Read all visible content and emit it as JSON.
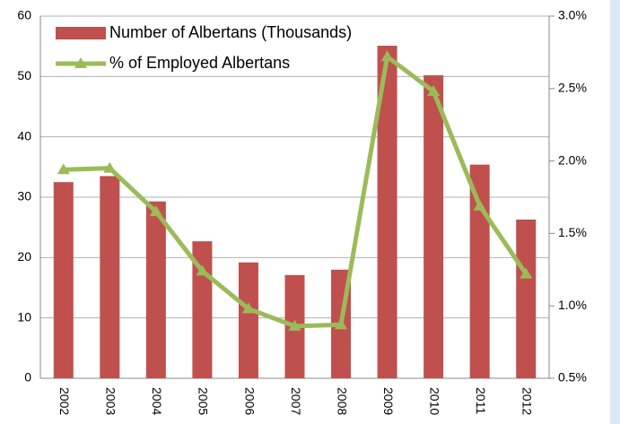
{
  "chart_data": {
    "type": "bar",
    "categories": [
      "2002",
      "2003",
      "2004",
      "2005",
      "2006",
      "2007",
      "2008",
      "2009",
      "2010",
      "2011",
      "2012"
    ],
    "series": [
      {
        "name": "Number of Albertans (Thousands)",
        "color": "#c0504d",
        "values": [
          32.5,
          33.5,
          29.3,
          22.7,
          19.2,
          17.1,
          18,
          55.1,
          50.2,
          35.4,
          26.3
        ]
      },
      {
        "name": "% of Employed Albertans",
        "color": "#9bbb59",
        "type": "line",
        "axis": "y2",
        "values": [
          1.94,
          1.95,
          1.65,
          1.24,
          0.98,
          0.86,
          0.87,
          2.72,
          2.48,
          1.69,
          1.22
        ]
      }
    ],
    "ylim": [
      0,
      60
    ],
    "yticks": [
      0,
      10,
      20,
      30,
      40,
      50,
      60
    ],
    "y2lim": [
      0.5,
      3.0
    ],
    "y2ticks": [
      {
        "value": 0.5,
        "label": "0.5%"
      },
      {
        "value": 1.0,
        "label": "1.0%"
      },
      {
        "value": 1.5,
        "label": "1.5%"
      },
      {
        "value": 2.0,
        "label": "2.0%"
      },
      {
        "value": 2.5,
        "label": "2.5%"
      },
      {
        "value": 3.0,
        "label": "3.0%"
      }
    ],
    "grid": true,
    "legend": "upper left"
  }
}
